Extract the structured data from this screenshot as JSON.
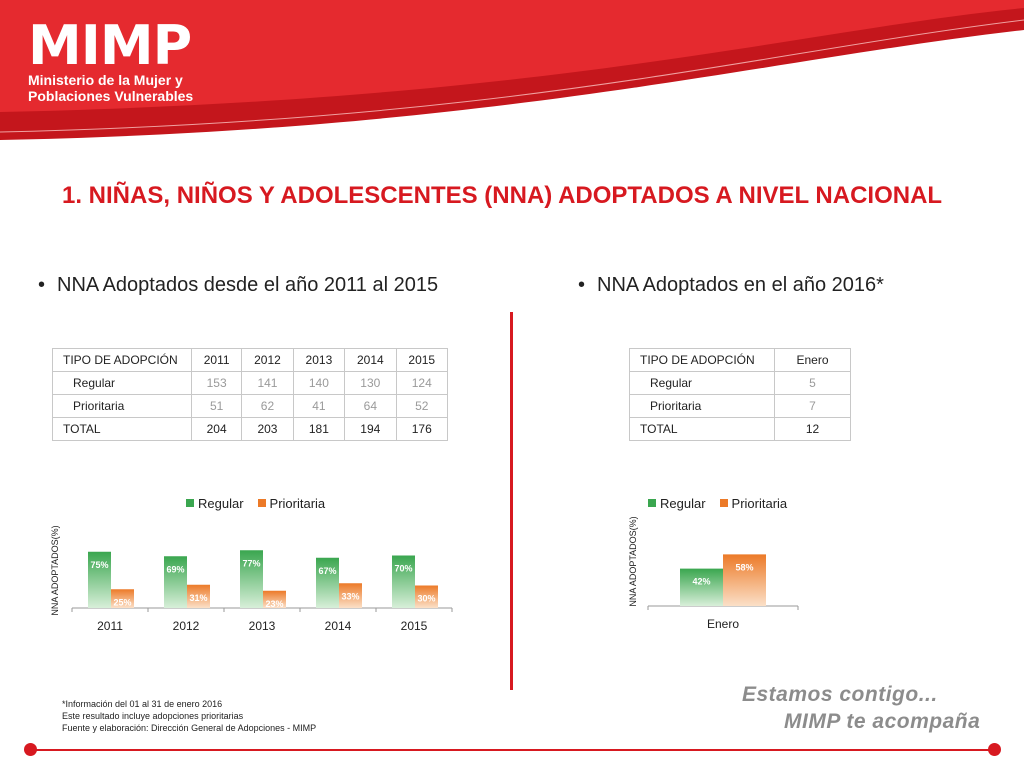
{
  "logo": {
    "title": "MIMP",
    "subtitle_line1": "Ministerio de la Mujer y",
    "subtitle_line2": "Poblaciones Vulnerables"
  },
  "title": "1. NIÑAS, NIÑOS Y ADOLESCENTES (NNA) ADOPTADOS A NIVEL NACIONAL",
  "colors": {
    "brand_red": "#d71920",
    "regular": "#3aa64f",
    "prioritaria": "#ec7a28"
  },
  "left": {
    "bullet": "NNA Adoptados desde el año 2011 al 2015",
    "table": {
      "headers": [
        "TIPO DE ADOPCIÓN",
        "2011",
        "2012",
        "2013",
        "2014",
        "2015"
      ],
      "rows": [
        [
          "Regular",
          "153",
          "141",
          "140",
          "130",
          "124"
        ],
        [
          "Prioritaria",
          "51",
          "62",
          "41",
          "64",
          "52"
        ],
        [
          "TOTAL",
          "204",
          "203",
          "181",
          "194",
          "176"
        ]
      ]
    }
  },
  "right": {
    "bullet": "NNA Adoptados en el año 2016*",
    "table": {
      "headers": [
        "TIPO DE ADOPCIÓN",
        "Enero"
      ],
      "rows": [
        [
          "Regular",
          "5"
        ],
        [
          "Prioritaria",
          "7"
        ],
        [
          "TOTAL",
          "12"
        ]
      ]
    }
  },
  "chart_data": [
    {
      "type": "bar",
      "categories": [
        "2011",
        "2012",
        "2013",
        "2014",
        "2015"
      ],
      "series": [
        {
          "name": "Regular",
          "values": [
            75,
            69,
            77,
            67,
            70
          ],
          "labels": [
            "75%",
            "69%",
            "77%",
            "67%",
            "70%"
          ]
        },
        {
          "name": "Prioritaria",
          "values": [
            25,
            31,
            23,
            33,
            30
          ],
          "labels": [
            "25%",
            "31%",
            "23%",
            "33%",
            "30%"
          ]
        }
      ],
      "ylabel": "NNA ADOPTADOS(%)",
      "ylim": [
        0,
        100
      ],
      "legend": "top",
      "grid": false
    },
    {
      "type": "bar",
      "categories": [
        "Enero"
      ],
      "series": [
        {
          "name": "Regular",
          "values": [
            42
          ],
          "labels": [
            "42%"
          ]
        },
        {
          "name": "Prioritaria",
          "values": [
            58
          ],
          "labels": [
            "58%"
          ]
        }
      ],
      "ylabel": "NNA ADOPTADOS(%)",
      "ylim": [
        0,
        100
      ],
      "legend": "top",
      "grid": false
    }
  ],
  "footnote": {
    "line1": "*Información del  01 al 31 de enero 2016",
    "line2": "Este resultado incluye adopciones prioritarias",
    "line3": "Fuente y elaboración: Dirección General de Adopciones - MIMP"
  },
  "slogan": {
    "line1": "Estamos contigo...",
    "line2": "MIMP te acompaña"
  }
}
